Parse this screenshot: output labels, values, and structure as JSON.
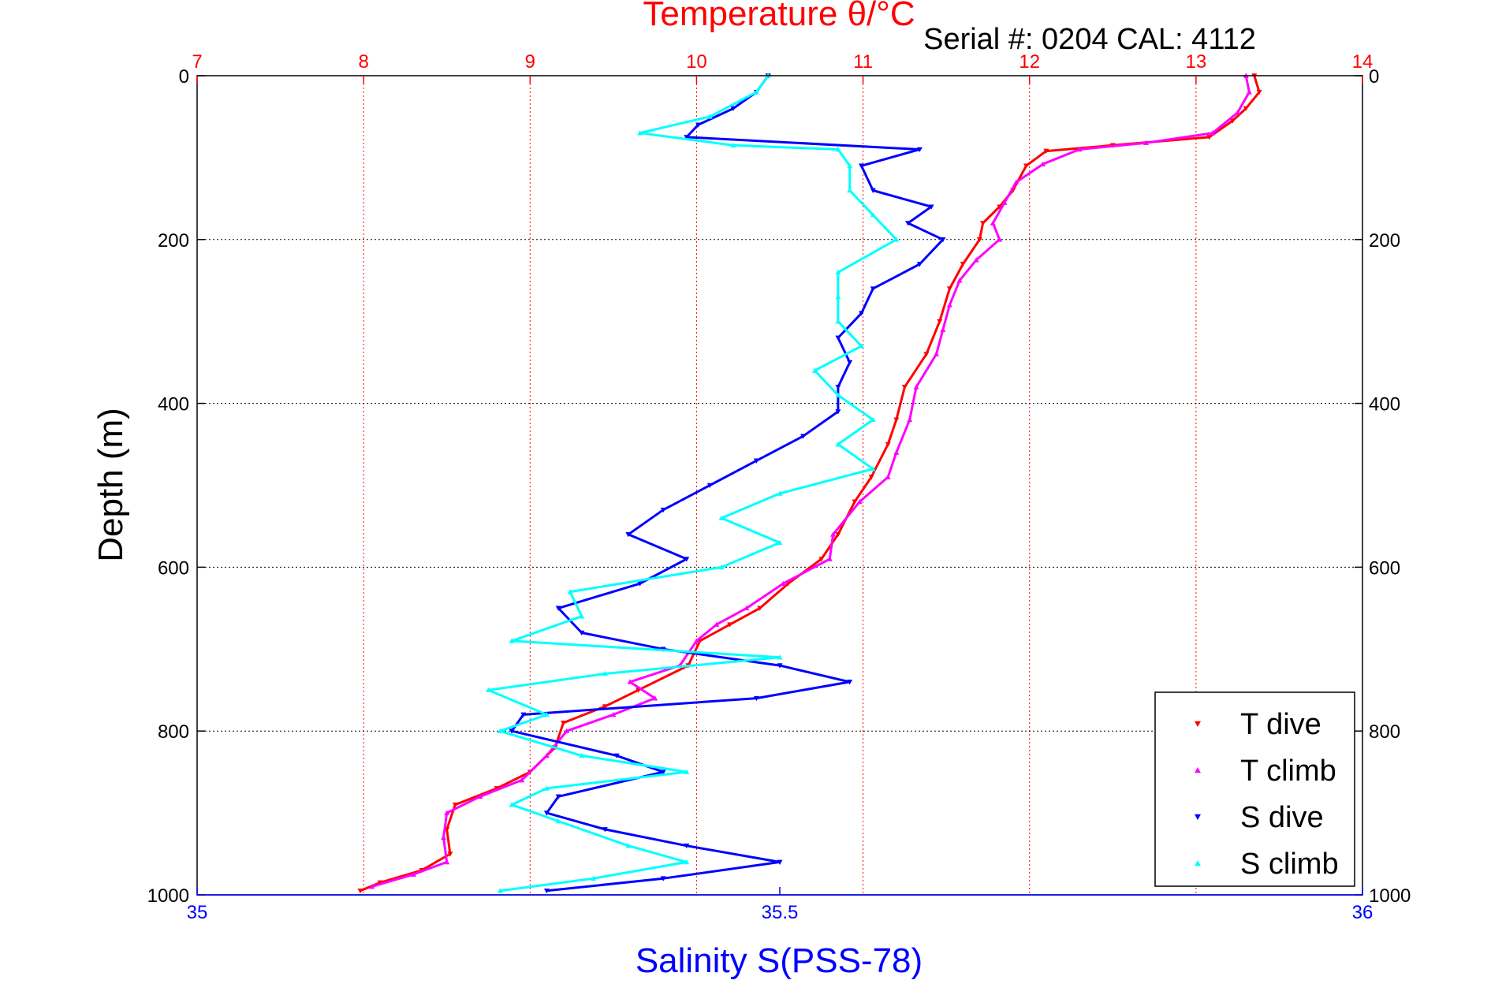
{
  "chart_data": {
    "type": "scatter",
    "title": "Temperature θ/°C",
    "subtitle": "Serial #: 0204  CAL: 4112",
    "ylabel": "Depth (m)",
    "xlabel": "Salinity S(PSS-78)",
    "top_axis": {
      "label": "Temperature θ/°C",
      "range": [
        7,
        14
      ],
      "ticks": [
        "7",
        "8",
        "9",
        "10",
        "11",
        "12",
        "13",
        "14"
      ]
    },
    "bottom_axis": {
      "label": "Salinity S(PSS-78)",
      "range": [
        35,
        36
      ],
      "ticks": [
        "35",
        "35.5",
        "36"
      ]
    },
    "y_axis": {
      "range": [
        0,
        1000
      ],
      "inverted": true,
      "ticks": [
        "0",
        "200",
        "400",
        "600",
        "800",
        "1000"
      ]
    },
    "grid": true,
    "legend_position": "bottom-right",
    "colors": {
      "temp_axis": "#ff0000",
      "sal_axis": "#0000ff"
    },
    "series": [
      {
        "name": "T dive",
        "axis": "temperature",
        "marker": "triangle-down",
        "color": "#ff0000",
        "points": [
          [
            13.35,
            0
          ],
          [
            13.38,
            20
          ],
          [
            13.3,
            40
          ],
          [
            13.22,
            55
          ],
          [
            13.08,
            75
          ],
          [
            12.5,
            85
          ],
          [
            12.1,
            92
          ],
          [
            11.98,
            110
          ],
          [
            11.9,
            140
          ],
          [
            11.82,
            160
          ],
          [
            11.72,
            180
          ],
          [
            11.7,
            200
          ],
          [
            11.6,
            230
          ],
          [
            11.52,
            260
          ],
          [
            11.46,
            300
          ],
          [
            11.38,
            340
          ],
          [
            11.25,
            380
          ],
          [
            11.2,
            420
          ],
          [
            11.15,
            450
          ],
          [
            11.05,
            490
          ],
          [
            10.95,
            520
          ],
          [
            10.85,
            560
          ],
          [
            10.75,
            590
          ],
          [
            10.55,
            620
          ],
          [
            10.38,
            650
          ],
          [
            10.2,
            670
          ],
          [
            10.02,
            690
          ],
          [
            9.95,
            720
          ],
          [
            9.65,
            750
          ],
          [
            9.45,
            770
          ],
          [
            9.2,
            790
          ],
          [
            9.15,
            820
          ],
          [
            9.0,
            850
          ],
          [
            8.8,
            870
          ],
          [
            8.55,
            890
          ],
          [
            8.5,
            920
          ],
          [
            8.52,
            950
          ],
          [
            8.35,
            970
          ],
          [
            8.1,
            985
          ],
          [
            7.98,
            995
          ]
        ]
      },
      {
        "name": "T climb",
        "axis": "temperature",
        "marker": "triangle-up",
        "color": "#ff00ff",
        "points": [
          [
            13.3,
            0
          ],
          [
            13.32,
            20
          ],
          [
            13.25,
            45
          ],
          [
            13.1,
            70
          ],
          [
            12.7,
            82
          ],
          [
            12.3,
            90
          ],
          [
            12.08,
            108
          ],
          [
            11.92,
            130
          ],
          [
            11.85,
            155
          ],
          [
            11.78,
            180
          ],
          [
            11.82,
            200
          ],
          [
            11.68,
            225
          ],
          [
            11.58,
            250
          ],
          [
            11.52,
            280
          ],
          [
            11.48,
            310
          ],
          [
            11.44,
            340
          ],
          [
            11.32,
            380
          ],
          [
            11.28,
            420
          ],
          [
            11.2,
            460
          ],
          [
            11.15,
            490
          ],
          [
            10.98,
            520
          ],
          [
            10.82,
            560
          ],
          [
            10.8,
            590
          ],
          [
            10.52,
            620
          ],
          [
            10.3,
            650
          ],
          [
            10.12,
            670
          ],
          [
            10.0,
            690
          ],
          [
            9.9,
            720
          ],
          [
            9.6,
            740
          ],
          [
            9.75,
            760
          ],
          [
            9.5,
            780
          ],
          [
            9.22,
            800
          ],
          [
            9.1,
            830
          ],
          [
            8.95,
            860
          ],
          [
            8.7,
            880
          ],
          [
            8.5,
            900
          ],
          [
            8.48,
            930
          ],
          [
            8.5,
            960
          ],
          [
            8.3,
            975
          ],
          [
            8.05,
            990
          ]
        ]
      },
      {
        "name": "S dive",
        "axis": "salinity",
        "marker": "triangle-down",
        "color": "#0000ff",
        "points": [
          [
            35.49,
            0
          ],
          [
            35.48,
            20
          ],
          [
            35.46,
            40
          ],
          [
            35.43,
            60
          ],
          [
            35.42,
            75
          ],
          [
            35.62,
            90
          ],
          [
            35.57,
            110
          ],
          [
            35.58,
            140
          ],
          [
            35.63,
            160
          ],
          [
            35.61,
            180
          ],
          [
            35.64,
            200
          ],
          [
            35.62,
            230
          ],
          [
            35.58,
            260
          ],
          [
            35.57,
            290
          ],
          [
            35.55,
            320
          ],
          [
            35.56,
            350
          ],
          [
            35.55,
            380
          ],
          [
            35.55,
            410
          ],
          [
            35.52,
            440
          ],
          [
            35.48,
            470
          ],
          [
            35.44,
            500
          ],
          [
            35.4,
            530
          ],
          [
            35.37,
            560
          ],
          [
            35.42,
            590
          ],
          [
            35.38,
            620
          ],
          [
            35.31,
            650
          ],
          [
            35.33,
            680
          ],
          [
            35.4,
            700
          ],
          [
            35.5,
            720
          ],
          [
            35.56,
            740
          ],
          [
            35.48,
            760
          ],
          [
            35.28,
            780
          ],
          [
            35.27,
            800
          ],
          [
            35.36,
            830
          ],
          [
            35.4,
            850
          ],
          [
            35.31,
            880
          ],
          [
            35.3,
            900
          ],
          [
            35.35,
            920
          ],
          [
            35.42,
            940
          ],
          [
            35.5,
            960
          ],
          [
            35.4,
            980
          ],
          [
            35.3,
            995
          ]
        ]
      },
      {
        "name": "S climb",
        "axis": "salinity",
        "marker": "triangle-up",
        "color": "#00ffff",
        "points": [
          [
            35.49,
            0
          ],
          [
            35.48,
            20
          ],
          [
            35.44,
            50
          ],
          [
            35.38,
            70
          ],
          [
            35.46,
            85
          ],
          [
            35.55,
            90
          ],
          [
            35.56,
            110
          ],
          [
            35.56,
            140
          ],
          [
            35.58,
            170
          ],
          [
            35.6,
            200
          ],
          [
            35.55,
            240
          ],
          [
            35.55,
            270
          ],
          [
            35.55,
            300
          ],
          [
            35.57,
            330
          ],
          [
            35.53,
            360
          ],
          [
            35.55,
            390
          ],
          [
            35.58,
            420
          ],
          [
            35.55,
            450
          ],
          [
            35.58,
            480
          ],
          [
            35.5,
            510
          ],
          [
            35.45,
            540
          ],
          [
            35.5,
            570
          ],
          [
            35.45,
            600
          ],
          [
            35.32,
            630
          ],
          [
            35.33,
            660
          ],
          [
            35.27,
            690
          ],
          [
            35.5,
            710
          ],
          [
            35.35,
            730
          ],
          [
            35.25,
            750
          ],
          [
            35.3,
            780
          ],
          [
            35.26,
            800
          ],
          [
            35.33,
            830
          ],
          [
            35.42,
            850
          ],
          [
            35.3,
            870
          ],
          [
            35.27,
            890
          ],
          [
            35.31,
            910
          ],
          [
            35.37,
            940
          ],
          [
            35.42,
            960
          ],
          [
            35.34,
            980
          ],
          [
            35.26,
            995
          ]
        ]
      }
    ]
  }
}
